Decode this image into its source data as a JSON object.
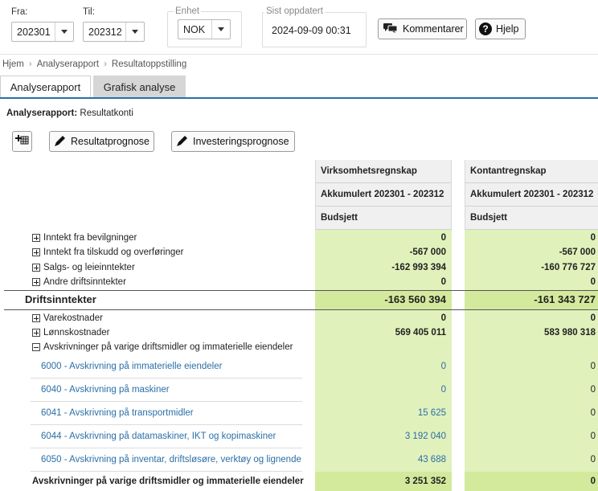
{
  "filters": {
    "from_label": "Fra:",
    "from_value": "202301",
    "to_label": "Til:",
    "to_value": "202312",
    "unit_label": "Enhet",
    "unit_value": "NOK",
    "updated_label": "Sist oppdatert",
    "updated_value": "2024-09-09 00:31"
  },
  "actions": {
    "comments_label": "Kommentarer",
    "help_label": "Hjelp"
  },
  "breadcrumb": [
    "Hjem",
    "Analyserapport",
    "Resultatoppstilling"
  ],
  "tabs": [
    {
      "label": "Analyserapport",
      "active": true
    },
    {
      "label": "Grafisk analyse",
      "active": false
    }
  ],
  "report": {
    "title_bold": "Analyserapport:",
    "title_rest": "Resultatkonti"
  },
  "toolbar": {
    "forecast_label": "Resultatprognose",
    "investment_label": "Investeringsprognose"
  },
  "columns": [
    {
      "title": "Virksomhetsregnskap",
      "period": "Akkumulert 202301 - 202312",
      "measure": "Budsjett"
    },
    {
      "title": "Kontantregnskap",
      "period": "Akkumulert 202301 - 202312",
      "measure": "Budsjett"
    }
  ],
  "rows": {
    "r1": {
      "label": "Inntekt fra bevilgninger",
      "v1": "0",
      "v2": "0"
    },
    "r2": {
      "label": "Inntekt fra tilskudd og overføringer",
      "v1": "-567 000",
      "v2": "-567 000"
    },
    "r3": {
      "label": "Salgs- og leieinntekter",
      "v1": "-162 993 394",
      "v2": "-160 776 727"
    },
    "r4": {
      "label": "Andre driftsinntekter",
      "v1": "0",
      "v2": "0"
    },
    "total1": {
      "label": "Driftsinntekter",
      "v1": "-163 560 394",
      "v2": "-161 343 727"
    },
    "r5": {
      "label": "Varekostnader",
      "v1": "0",
      "v2": "0"
    },
    "r6": {
      "label": "Lønnskostnader",
      "v1": "569 405 011",
      "v2": "583 980 318"
    },
    "r7": {
      "label": "Avskrivninger på varige driftsmidler og immaterielle eiendeler"
    },
    "a1": {
      "label": "6000 - Avskrivning på immaterielle eiendeler",
      "v1": "0",
      "v2": "0"
    },
    "a2": {
      "label": "6040 - Avskrivning på maskiner",
      "v1": "0",
      "v2": "0"
    },
    "a3": {
      "label": "6041 - Avskrivning på transportmidler",
      "v1": "15 625",
      "v2": "0"
    },
    "a4": {
      "label": "6044 - Avskrivning på datamaskiner, IKT og kopimaskiner",
      "v1": "3 192 040",
      "v2": "0"
    },
    "a5": {
      "label": "6050 - Avskrivning på inventar, driftsløsøre, verktøy og lignende",
      "v1": "43 688",
      "v2": "0"
    },
    "sub1": {
      "label": "Avskrivninger på varige driftsmidler og immaterielle eiendeler",
      "v1": "3 251 352",
      "v2": "0"
    }
  }
}
